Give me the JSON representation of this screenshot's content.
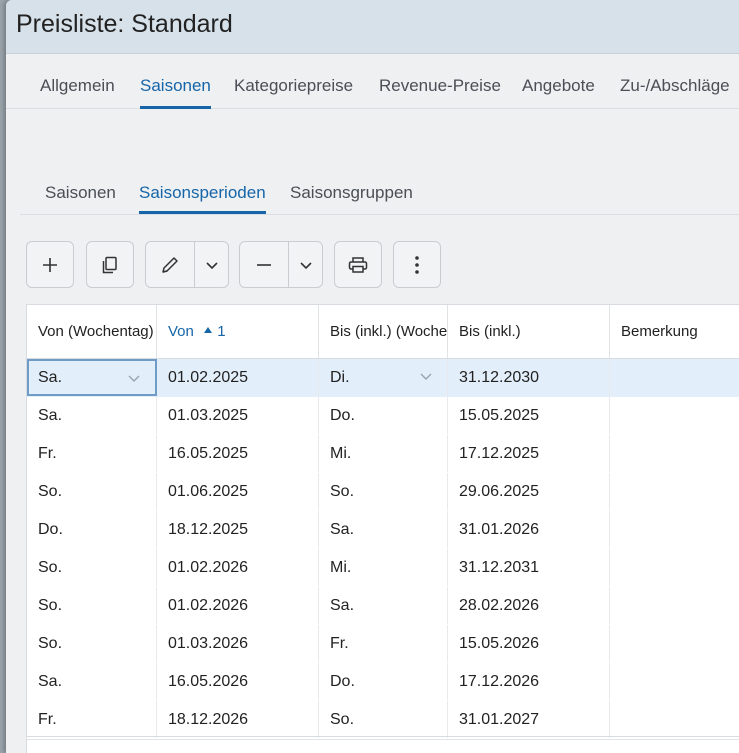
{
  "window": {
    "title": "Preisliste: Standard"
  },
  "tabs": [
    {
      "label": "Allgemein",
      "active": false
    },
    {
      "label": "Saisonen",
      "active": true
    },
    {
      "label": "Kategoriepreise",
      "active": false
    },
    {
      "label": "Revenue-Preise",
      "active": false
    },
    {
      "label": "Angebote",
      "active": false
    },
    {
      "label": "Zu-/Abschläge",
      "active": false
    }
  ],
  "subtabs": [
    {
      "label": "Saisonen",
      "active": false
    },
    {
      "label": "Saisonsperioden",
      "active": true
    },
    {
      "label": "Saisonsgruppen",
      "active": false
    }
  ],
  "toolbar": {
    "add": "plus-icon",
    "copy": "copy-icon",
    "edit": "pencil-icon",
    "remove": "minus-icon",
    "print": "printer-icon",
    "more": "more-vertical-icon"
  },
  "table": {
    "columns": [
      {
        "label": "Von (Wochentag)"
      },
      {
        "label": "Von",
        "sort": "1"
      },
      {
        "label": "Bis (inkl.) (Wochentag)"
      },
      {
        "label": "Bis (inkl.)"
      },
      {
        "label": "Bemerkung"
      }
    ],
    "rows": [
      {
        "von_wt": "Sa.",
        "von": "01.02.2025",
        "bis_wt": "Di.",
        "bis": "31.12.2030",
        "bemerkung": ""
      },
      {
        "von_wt": "Sa.",
        "von": "01.03.2025",
        "bis_wt": "Do.",
        "bis": "15.05.2025",
        "bemerkung": ""
      },
      {
        "von_wt": "Fr.",
        "von": "16.05.2025",
        "bis_wt": "Mi.",
        "bis": "17.12.2025",
        "bemerkung": ""
      },
      {
        "von_wt": "So.",
        "von": "01.06.2025",
        "bis_wt": "So.",
        "bis": "29.06.2025",
        "bemerkung": ""
      },
      {
        "von_wt": "Do.",
        "von": "18.12.2025",
        "bis_wt": "Sa.",
        "bis": "31.01.2026",
        "bemerkung": ""
      },
      {
        "von_wt": "So.",
        "von": "01.02.2026",
        "bis_wt": "Mi.",
        "bis": "31.12.2031",
        "bemerkung": ""
      },
      {
        "von_wt": "So.",
        "von": "01.02.2026",
        "bis_wt": "Sa.",
        "bis": "28.02.2026",
        "bemerkung": ""
      },
      {
        "von_wt": "So.",
        "von": "01.03.2026",
        "bis_wt": "Fr.",
        "bis": "15.05.2026",
        "bemerkung": ""
      },
      {
        "von_wt": "Sa.",
        "von": "16.05.2026",
        "bis_wt": "Do.",
        "bis": "17.12.2026",
        "bemerkung": ""
      },
      {
        "von_wt": "Fr.",
        "von": "18.12.2026",
        "bis_wt": "So.",
        "bis": "31.01.2027",
        "bemerkung": ""
      }
    ],
    "selected_row": 0
  },
  "colors": {
    "accent": "#1565a8",
    "selected_row": "#e3eefb",
    "titlebar": "#d6e1ea"
  }
}
